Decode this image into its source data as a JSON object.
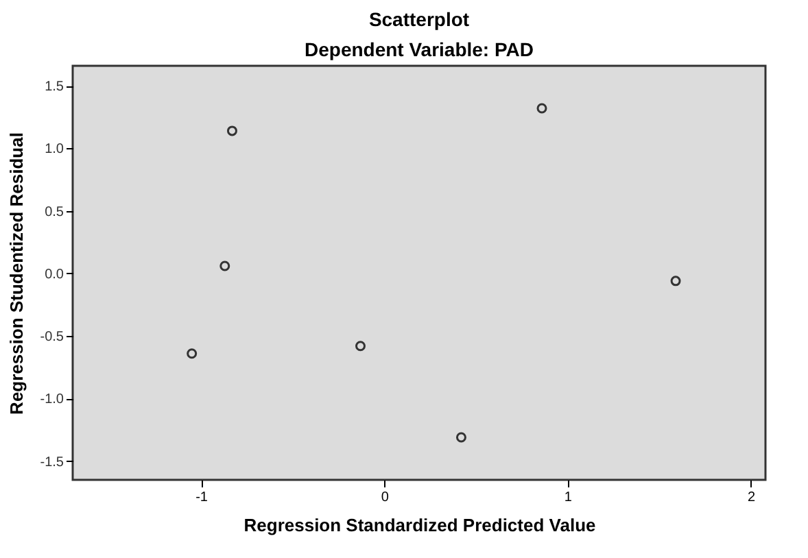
{
  "chart_data": {
    "type": "scatter",
    "title": "Scatterplot",
    "subtitle": "Dependent Variable: PAD",
    "xlabel": "Regression Standardized Predicted Value",
    "ylabel": "Regression Studentized Residual",
    "x": [
      -1.05,
      -0.87,
      -0.83,
      -0.13,
      0.42,
      0.86,
      1.59
    ],
    "series": [
      {
        "color": "#333333",
        "values": [
          -0.64,
          0.06,
          1.14,
          -0.58,
          -1.31,
          1.32,
          -0.06
        ]
      }
    ],
    "xlim": [
      -1.7,
      2.08
    ],
    "ylim": [
      -1.65,
      1.66
    ],
    "xticks": [
      -1,
      0,
      1,
      2
    ],
    "yticks": [
      {
        "value": -1.5,
        "label": "-1.5"
      },
      {
        "value": -1.0,
        "label": "-1.0"
      },
      {
        "value": -0.5,
        "label": "-0.5"
      },
      {
        "value": 0,
        "label": "0.0"
      },
      {
        "value": 0.5,
        "label": "0.5"
      },
      {
        "value": 1.0,
        "label": "1.0"
      },
      {
        "value": 1.5,
        "label": "1.5"
      }
    ],
    "marker": "circle",
    "grid": false,
    "legend": false
  }
}
